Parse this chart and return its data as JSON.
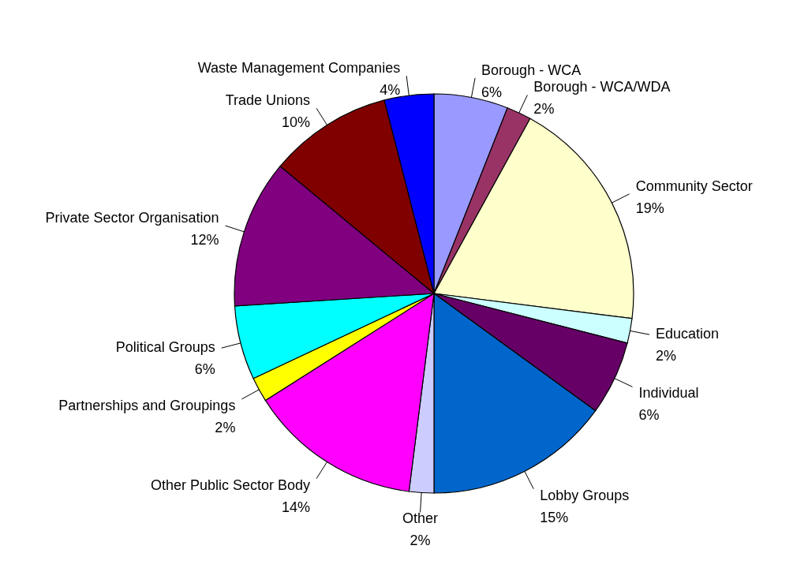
{
  "chart_data": {
    "type": "pie",
    "categories": [
      "Borough - WCA",
      "Borough - WCA/WDA",
      "Community Sector",
      "Education",
      "Individual",
      "Lobby Groups",
      "Other",
      "Other Public Sector Body",
      "Partnerships and Groupings",
      "Political Groups",
      "Private Sector Organisation",
      "Trade Unions",
      "Waste Management Companies"
    ],
    "values": [
      6,
      2,
      19,
      2,
      6,
      15,
      2,
      14,
      2,
      6,
      12,
      10,
      4
    ],
    "value_labels": [
      "6%",
      "2%",
      "19%",
      "2%",
      "6%",
      "15%",
      "2%",
      "14%",
      "2%",
      "6%",
      "12%",
      "10%",
      "4%"
    ],
    "colors": [
      "#9999ff",
      "#993366",
      "#ffffcc",
      "#ccffff",
      "#660066",
      "#0066cc",
      "#ccccff",
      "#ff00ff",
      "#ffff00",
      "#00ffff",
      "#800080",
      "#800000",
      "#0000ff"
    ]
  }
}
